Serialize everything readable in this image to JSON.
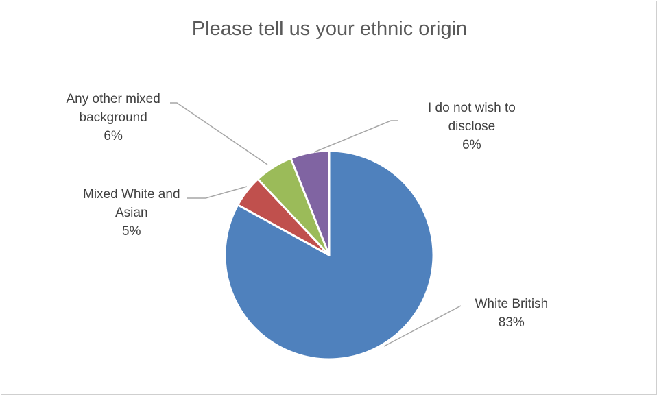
{
  "chart_data": {
    "type": "pie",
    "title": "Please tell us your ethnic origin",
    "slices": [
      {
        "label_lines": [
          "White British"
        ],
        "percent_label": "83%",
        "value": 83,
        "color": "#4f81bd"
      },
      {
        "label_lines": [
          "Mixed White and",
          "Asian"
        ],
        "percent_label": "5%",
        "value": 5,
        "color": "#c0504d"
      },
      {
        "label_lines": [
          "Any other mixed",
          "background"
        ],
        "percent_label": "6%",
        "value": 6,
        "color": "#9bbb59"
      },
      {
        "label_lines": [
          "I do not wish to",
          "disclose"
        ],
        "percent_label": "6%",
        "value": 6,
        "color": "#8064a2"
      }
    ],
    "legend": "none",
    "data_labels": "outside-with-leader-lines"
  }
}
